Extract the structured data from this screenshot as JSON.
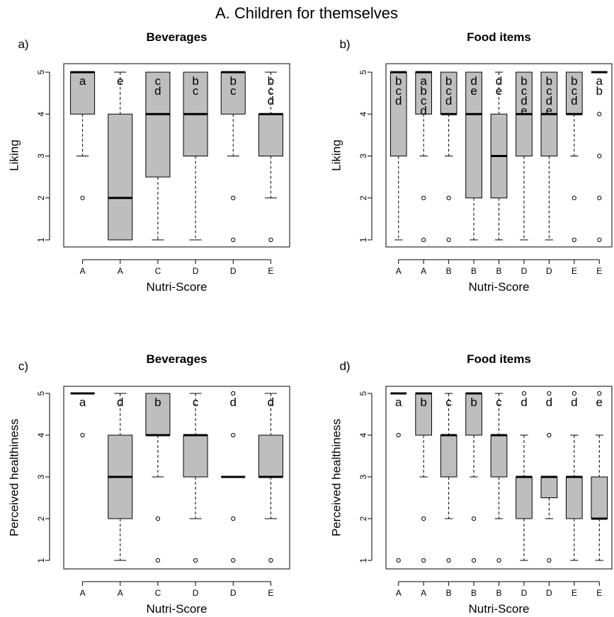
{
  "figure": {
    "title": "A. Children for themselves"
  },
  "chart_data": [
    {
      "type": "boxplot",
      "panel_label": "a)",
      "title": "Beverages",
      "xlabel": "Nutri-Score",
      "ylabel": "Liking",
      "ylim": [
        1,
        5
      ],
      "yticks": [
        "1",
        "2",
        "3",
        "4",
        "5"
      ],
      "categories": [
        "A",
        "A",
        "C",
        "D",
        "D",
        "E"
      ],
      "boxes": [
        {
          "q1": 4,
          "median": 5,
          "q3": 5,
          "whisker_low": 3,
          "whisker_high": 5,
          "outliers": [
            2
          ],
          "letters": [
            "a"
          ]
        },
        {
          "q1": 1,
          "median": 2,
          "q3": 4,
          "whisker_low": 1,
          "whisker_high": 5,
          "outliers": [],
          "letters": [
            "e"
          ]
        },
        {
          "q1": 2.5,
          "median": 4,
          "q3": 5,
          "whisker_low": 1,
          "whisker_high": 5,
          "outliers": [],
          "letters": [
            "c",
            "d"
          ]
        },
        {
          "q1": 3,
          "median": 4,
          "q3": 5,
          "whisker_low": 1,
          "whisker_high": 5,
          "outliers": [],
          "letters": [
            "b",
            "c"
          ]
        },
        {
          "q1": 4,
          "median": 5,
          "q3": 5,
          "whisker_low": 3,
          "whisker_high": 5,
          "outliers": [
            2,
            1
          ],
          "letters": [
            "b",
            "c"
          ]
        },
        {
          "q1": 3,
          "median": 4,
          "q3": 4,
          "whisker_low": 2,
          "whisker_high": 5,
          "outliers": [
            1
          ],
          "letters": [
            "b",
            "c",
            "d"
          ]
        }
      ]
    },
    {
      "type": "boxplot",
      "panel_label": "b)",
      "title": "Food items",
      "xlabel": "Nutri-Score",
      "ylabel": "Liking",
      "ylim": [
        1,
        5
      ],
      "yticks": [
        "1",
        "2",
        "3",
        "4",
        "5"
      ],
      "categories": [
        "A",
        "A",
        "B",
        "B",
        "B",
        "D",
        "D",
        "E",
        "E"
      ],
      "boxes": [
        {
          "q1": 3,
          "median": 5,
          "q3": 5,
          "whisker_low": 1,
          "whisker_high": 5,
          "outliers": [],
          "letters": [
            "b",
            "c",
            "d"
          ]
        },
        {
          "q1": 4,
          "median": 5,
          "q3": 5,
          "whisker_low": 3,
          "whisker_high": 5,
          "outliers": [
            2,
            1
          ],
          "letters": [
            "a",
            "b",
            "c",
            "d"
          ]
        },
        {
          "q1": 4,
          "median": 4,
          "q3": 5,
          "whisker_low": 3,
          "whisker_high": 5,
          "outliers": [
            2,
            1
          ],
          "letters": [
            "b",
            "c",
            "d"
          ]
        },
        {
          "q1": 2,
          "median": 4,
          "q3": 5,
          "whisker_low": 1,
          "whisker_high": 5,
          "outliers": [],
          "letters": [
            "d",
            "e"
          ]
        },
        {
          "q1": 2,
          "median": 3,
          "q3": 4,
          "whisker_low": 1,
          "whisker_high": 5,
          "outliers": [],
          "letters": [
            "d",
            "e"
          ]
        },
        {
          "q1": 3,
          "median": 4,
          "q3": 5,
          "whisker_low": 1,
          "whisker_high": 5,
          "outliers": [],
          "letters": [
            "b",
            "c",
            "d",
            "e"
          ]
        },
        {
          "q1": 3,
          "median": 4,
          "q3": 5,
          "whisker_low": 1,
          "whisker_high": 5,
          "outliers": [],
          "letters": [
            "b",
            "c",
            "d",
            "e"
          ]
        },
        {
          "q1": 4,
          "median": 4,
          "q3": 5,
          "whisker_low": 3,
          "whisker_high": 5,
          "outliers": [
            2,
            1
          ],
          "letters": [
            "b",
            "c",
            "d"
          ]
        },
        {
          "q1": 5,
          "median": 5,
          "q3": 5,
          "whisker_low": 5,
          "whisker_high": 5,
          "outliers": [
            4,
            3,
            2,
            1
          ],
          "letters": [
            "a",
            "b"
          ]
        }
      ]
    },
    {
      "type": "boxplot",
      "panel_label": "c)",
      "title": "Beverages",
      "xlabel": "Nutri-Score",
      "ylabel": "Perceived healthiness",
      "ylim": [
        1,
        5
      ],
      "yticks": [
        "1",
        "2",
        "3",
        "4",
        "5"
      ],
      "categories": [
        "A",
        "A",
        "C",
        "D",
        "D",
        "E"
      ],
      "boxes": [
        {
          "q1": 5,
          "median": 5,
          "q3": 5,
          "whisker_low": 5,
          "whisker_high": 5,
          "outliers": [
            4
          ],
          "letters": [
            "a"
          ]
        },
        {
          "q1": 2,
          "median": 3,
          "q3": 4,
          "whisker_low": 1,
          "whisker_high": 5,
          "outliers": [],
          "letters": [
            "d"
          ]
        },
        {
          "q1": 4,
          "median": 4,
          "q3": 5,
          "whisker_low": 3,
          "whisker_high": 5,
          "outliers": [
            2,
            1
          ],
          "letters": [
            "b"
          ]
        },
        {
          "q1": 3,
          "median": 4,
          "q3": 4,
          "whisker_low": 2,
          "whisker_high": 5,
          "outliers": [
            1
          ],
          "letters": [
            "c"
          ]
        },
        {
          "q1": 3,
          "median": 3,
          "q3": 3,
          "whisker_low": 3,
          "whisker_high": 3,
          "outliers": [
            5,
            4,
            2,
            1
          ],
          "letters": [
            "d"
          ]
        },
        {
          "q1": 3,
          "median": 3,
          "q3": 4,
          "whisker_low": 2,
          "whisker_high": 5,
          "outliers": [
            1
          ],
          "letters": [
            "d"
          ]
        }
      ]
    },
    {
      "type": "boxplot",
      "panel_label": "d)",
      "title": "Food items",
      "xlabel": "Nutri-Score",
      "ylabel": "Perceived healthiness",
      "ylim": [
        1,
        5
      ],
      "yticks": [
        "1",
        "2",
        "3",
        "4",
        "5"
      ],
      "categories": [
        "A",
        "A",
        "B",
        "B",
        "B",
        "D",
        "D",
        "E",
        "E"
      ],
      "boxes": [
        {
          "q1": 5,
          "median": 5,
          "q3": 5,
          "whisker_low": 5,
          "whisker_high": 5,
          "outliers": [
            4,
            1
          ],
          "letters": [
            "a"
          ]
        },
        {
          "q1": 4,
          "median": 5,
          "q3": 5,
          "whisker_low": 3,
          "whisker_high": 5,
          "outliers": [
            2,
            1
          ],
          "letters": [
            "b"
          ]
        },
        {
          "q1": 3,
          "median": 4,
          "q3": 4,
          "whisker_low": 2,
          "whisker_high": 5,
          "outliers": [
            1
          ],
          "letters": [
            "c"
          ]
        },
        {
          "q1": 4,
          "median": 5,
          "q3": 5,
          "whisker_low": 3,
          "whisker_high": 5,
          "outliers": [
            2,
            1
          ],
          "letters": [
            "b"
          ]
        },
        {
          "q1": 3,
          "median": 4,
          "q3": 4,
          "whisker_low": 2,
          "whisker_high": 5,
          "outliers": [
            1
          ],
          "letters": [
            "c"
          ]
        },
        {
          "q1": 2,
          "median": 3,
          "q3": 3,
          "whisker_low": 1,
          "whisker_high": 4,
          "outliers": [
            5
          ],
          "letters": [
            "d"
          ]
        },
        {
          "q1": 2.5,
          "median": 3,
          "q3": 3,
          "whisker_low": 2,
          "whisker_high": 3,
          "outliers": [
            5,
            4,
            1
          ],
          "letters": [
            "d"
          ]
        },
        {
          "q1": 2,
          "median": 3,
          "q3": 3,
          "whisker_low": 1,
          "whisker_high": 4,
          "outliers": [
            5
          ],
          "letters": [
            "d"
          ]
        },
        {
          "q1": 2,
          "median": 2,
          "q3": 3,
          "whisker_low": 1,
          "whisker_high": 4,
          "outliers": [
            5
          ],
          "letters": [
            "e"
          ]
        }
      ]
    }
  ]
}
